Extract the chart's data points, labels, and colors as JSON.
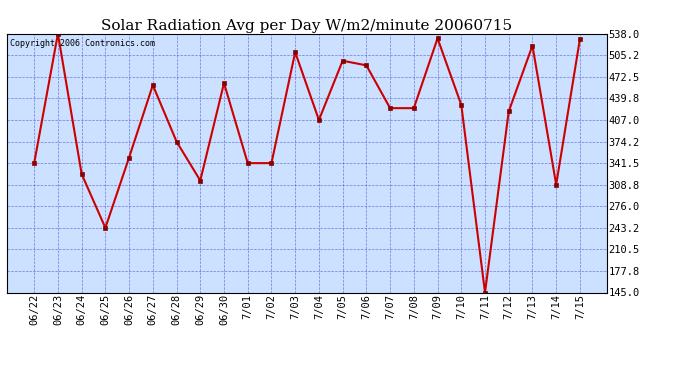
{
  "title": "Solar Radiation Avg per Day W/m2/minute 20060715",
  "copyright": "Copyright 2006 Contronics.com",
  "x_labels": [
    "06/22",
    "06/23",
    "06/24",
    "06/25",
    "06/26",
    "06/27",
    "06/28",
    "06/29",
    "06/30",
    "7/01",
    "7/02",
    "7/03",
    "7/04",
    "7/05",
    "7/06",
    "7/07",
    "7/08",
    "7/09",
    "7/10",
    "7/11",
    "7/12",
    "7/13",
    "7/14",
    "7/15"
  ],
  "y_values": [
    341.5,
    538.0,
    325.0,
    243.2,
    350.0,
    460.0,
    374.2,
    315.0,
    463.0,
    341.5,
    341.5,
    510.0,
    407.0,
    497.0,
    490.0,
    425.0,
    425.0,
    531.0,
    430.0,
    145.0,
    420.0,
    520.0,
    308.8,
    530.0
  ],
  "y_min": 145.0,
  "y_max": 538.0,
  "y_ticks": [
    145.0,
    177.8,
    210.5,
    243.2,
    276.0,
    308.8,
    341.5,
    374.2,
    407.0,
    439.8,
    472.5,
    505.2,
    538.0
  ],
  "line_color": "#cc0000",
  "marker_color": "#880000",
  "bg_color": "#cce0ff",
  "grid_color": "#3333cc",
  "title_fontsize": 11,
  "tick_fontsize": 7.5,
  "fig_width": 6.9,
  "fig_height": 3.75,
  "dpi": 100
}
